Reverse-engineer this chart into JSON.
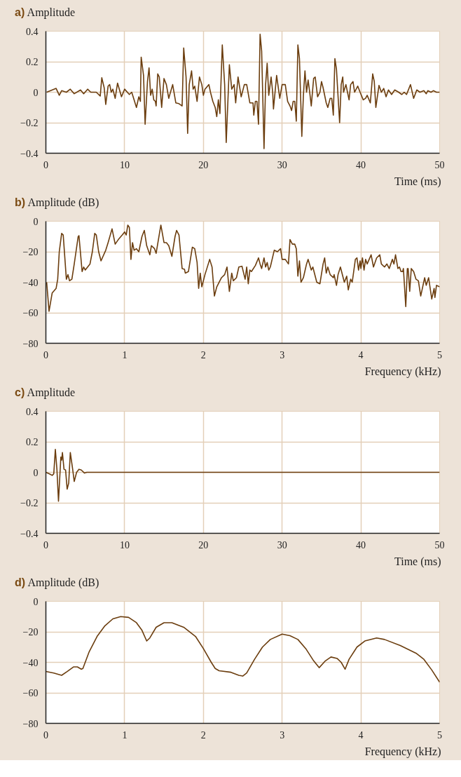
{
  "chart_data": [
    {
      "type": "line",
      "title": "a)",
      "ylabel": "Amplitude",
      "xlabel": "Time (ms)",
      "xlim": [
        0,
        50
      ],
      "ylim": [
        -0.4,
        0.4
      ],
      "grid": true,
      "xticks": [
        0,
        10,
        20,
        30,
        40,
        50
      ],
      "yticks": [
        {
          "value": -0.4,
          "label": "−0.4"
        },
        {
          "value": -0.2,
          "label": "−0.2"
        },
        0,
        0.2,
        0.4
      ],
      "series": [
        {
          "color": "#6b3d0e",
          "x": [
            0.1,
            1.3,
            1.7,
            2.0,
            2.6,
            3.1,
            3.6,
            4.4,
            4.8,
            5.3,
            5.7,
            6.4,
            6.9,
            7.1,
            7.4,
            7.6,
            7.9,
            8.1,
            8.3,
            8.5,
            8.8,
            9.1,
            9.6,
            10.0,
            10.6,
            10.9,
            11.5,
            11.8,
            12.0,
            12.1,
            12.4,
            12.6,
            12.9,
            13.1,
            13.3,
            13.5,
            13.7,
            13.9,
            14.0,
            14.2,
            14.4,
            14.7,
            15.0,
            15.3,
            15.6,
            16.1,
            16.5,
            16.9,
            17.3,
            17.5,
            17.8,
            18.0,
            18.2,
            18.5,
            18.7,
            18.9,
            19.2,
            19.5,
            19.8,
            20.0,
            20.2,
            20.7,
            20.9,
            21.2,
            21.5,
            21.7,
            21.9,
            22.1,
            22.4,
            22.7,
            22.9,
            23.3,
            23.6,
            23.8,
            23.9,
            24.1,
            24.4,
            24.8,
            25.2,
            25.5,
            25.9,
            26.3,
            26.4,
            26.6,
            26.8,
            27.0,
            27.2,
            27.4,
            27.7,
            27.9,
            28.1,
            28.3,
            28.6,
            28.8,
            28.9,
            29.3,
            29.7,
            30.0,
            30.2,
            30.4,
            30.7,
            31.0,
            31.2,
            31.4,
            31.6,
            31.8,
            32.0,
            32.2,
            32.5,
            32.7,
            32.9,
            33.1,
            33.3,
            33.5,
            33.7,
            34.0,
            34.2,
            34.5,
            34.8,
            35.0,
            35.2,
            35.6,
            35.8,
            36.1,
            36.3,
            36.5,
            36.7,
            36.9,
            37.3,
            37.5,
            37.7,
            37.8,
            38.1,
            38.3,
            38.5,
            38.7,
            39.0,
            39.2,
            39.6,
            39.9,
            40.3,
            40.6,
            40.8,
            41.2,
            41.5,
            41.7,
            41.9,
            42.3,
            42.6,
            42.9,
            43.2,
            43.5,
            43.9,
            44.3,
            44.8,
            45.2,
            45.5,
            45.8,
            46.3,
            46.7,
            47.1,
            47.5,
            48.0,
            48.3,
            48.5,
            48.9,
            49.2,
            49.6,
            50.0
          ],
          "values": [
            0,
            0.025,
            -0.02,
            0.01,
            0.0,
            0.02,
            -0.01,
            0.015,
            -0.01,
            0.02,
            0,
            0,
            -0.025,
            0.095,
            0.03,
            -0.08,
            0.04,
            0.05,
            0,
            0.02,
            -0.04,
            0.06,
            -0.03,
            0.02,
            -0.015,
            0,
            -0.1,
            -0.03,
            -0.06,
            0.23,
            0.11,
            -0.21,
            0.07,
            0.16,
            -0.02,
            0.02,
            -0.05,
            -0.06,
            -0.09,
            0.12,
            0.1,
            -0.1,
            0.09,
            0.05,
            -0.04,
            0.05,
            -0.07,
            -0.075,
            -0.09,
            0.29,
            0.1,
            -0.27,
            0.05,
            0.14,
            0.02,
            0.04,
            -0.06,
            0.1,
            0.05,
            -0.02,
            0.02,
            0.05,
            0,
            -0.06,
            -0.1,
            -0.16,
            -0.05,
            -0.14,
            0.31,
            0.05,
            -0.33,
            0.18,
            0.02,
            0.04,
            0.05,
            -0.07,
            0.1,
            -0.03,
            0.05,
            0.05,
            -0.07,
            -0.07,
            -0.15,
            -0.06,
            -0.06,
            -0.21,
            0.38,
            0.27,
            -0.37,
            0.05,
            0.19,
            -0.02,
            0.1,
            0,
            -0.11,
            0.11,
            -0.04,
            0.05,
            0.05,
            0.05,
            -0.06,
            -0.09,
            -0.12,
            -0.06,
            -0.06,
            -0.19,
            0.31,
            0.22,
            -0.29,
            -0.02,
            0.14,
            0,
            0.08,
            0,
            -0.09,
            0.09,
            0.1,
            -0.03,
            0,
            0.07,
            0.03,
            -0.07,
            -0.1,
            -0.04,
            -0.04,
            -0.15,
            0.22,
            0.15,
            -0.2,
            0.05,
            0.1,
            0,
            0.05,
            0,
            -0.05,
            0.05,
            0.07,
            0,
            0.04,
            0.0,
            -0.05,
            -0.04,
            -0.02,
            -0.07,
            0.12,
            0.07,
            -0.1,
            0.045,
            0,
            0.025,
            -0.03,
            0.015,
            -0.015,
            0.015,
            0,
            -0.015,
            0,
            -0.015,
            0.05,
            -0.04,
            0.015,
            0,
            0.01,
            -0.01,
            0.01,
            0,
            0.01,
            0,
            0
          ]
        }
      ]
    },
    {
      "type": "line",
      "title": "b)",
      "ylabel": "Amplitude (dB)",
      "xlabel": "Frequency (kHz)",
      "xlim": [
        0,
        5
      ],
      "ylim": [
        -80,
        0
      ],
      "grid": true,
      "xticks": [
        0,
        1,
        2,
        3,
        4,
        5
      ],
      "yticks": [
        {
          "value": -80,
          "label": "−80"
        },
        {
          "value": -60,
          "label": "−60"
        },
        {
          "value": -40,
          "label": "−40"
        },
        {
          "value": -20,
          "label": "−20"
        },
        0
      ],
      "series": [
        {
          "color": "#6b3d0e",
          "x": [
            0.01,
            0.04,
            0.08,
            0.13,
            0.15,
            0.17,
            0.2,
            0.22,
            0.26,
            0.28,
            0.3,
            0.33,
            0.36,
            0.41,
            0.42,
            0.46,
            0.48,
            0.5,
            0.56,
            0.59,
            0.62,
            0.64,
            0.67,
            0.7,
            0.76,
            0.79,
            0.84,
            0.88,
            0.92,
            0.97,
            1.0,
            1.02,
            1.04,
            1.06,
            1.08,
            1.1,
            1.12,
            1.15,
            1.18,
            1.22,
            1.25,
            1.28,
            1.32,
            1.34,
            1.38,
            1.4,
            1.46,
            1.5,
            1.53,
            1.56,
            1.6,
            1.64,
            1.66,
            1.69,
            1.73,
            1.76,
            1.77,
            1.81,
            1.86,
            1.89,
            1.92,
            1.94,
            1.96,
            1.98,
            2.02,
            2.08,
            2.11,
            2.14,
            2.17,
            2.23,
            2.27,
            2.3,
            2.33,
            2.36,
            2.38,
            2.42,
            2.45,
            2.49,
            2.53,
            2.55,
            2.57,
            2.59,
            2.61,
            2.66,
            2.7,
            2.72,
            2.74,
            2.77,
            2.79,
            2.81,
            2.83,
            2.85,
            2.9,
            2.94,
            2.98,
            3.0,
            3.04,
            3.08,
            3.1,
            3.13,
            3.16,
            3.18,
            3.2,
            3.22,
            3.24,
            3.27,
            3.31,
            3.33,
            3.37,
            3.39,
            3.44,
            3.48,
            3.52,
            3.54,
            3.56,
            3.58,
            3.61,
            3.65,
            3.66,
            3.69,
            3.71,
            3.74,
            3.79,
            3.82,
            3.84,
            3.87,
            3.89,
            3.93,
            3.95,
            3.97,
            3.99,
            4.0,
            4.02,
            4.04,
            4.06,
            4.08,
            4.13,
            4.16,
            4.2,
            4.24,
            4.26,
            4.3,
            4.33,
            4.36,
            4.4,
            4.42,
            4.44,
            4.47,
            4.49,
            4.51,
            4.53,
            4.54,
            4.57,
            4.59,
            4.6,
            4.62,
            4.64,
            4.67,
            4.7,
            4.73,
            4.76,
            4.81,
            4.83,
            4.86,
            4.9,
            4.93,
            4.94,
            4.96,
            5.0
          ],
          "values": [
            -40,
            -59,
            -47,
            -44,
            -38,
            -20,
            -8,
            -9,
            -38,
            -35,
            -39,
            -38,
            -28,
            -10,
            -9.5,
            -33,
            -30,
            -32,
            -28,
            -20,
            -8,
            -9,
            -20,
            -26,
            -19,
            -14,
            -5,
            -15,
            -12,
            -9,
            -7,
            -9,
            -2.5,
            -4,
            -25,
            -14,
            -19,
            -18,
            -20,
            -10,
            -6,
            -16,
            -22,
            -16,
            -18,
            -21,
            -2.5,
            -14,
            -14,
            -16,
            -23,
            -10,
            -6,
            -9,
            -31,
            -31.5,
            -34,
            -33,
            -17,
            -18,
            -27,
            -44,
            -34,
            -43,
            -35,
            -25,
            -30,
            -49,
            -43,
            -37,
            -35,
            -30,
            -46,
            -34,
            -39,
            -37,
            -30,
            -29.5,
            -38,
            -30,
            -41,
            -32,
            -33,
            -29,
            -24,
            -28,
            -31,
            -24,
            -30,
            -27,
            -32,
            -30,
            -19,
            -20,
            -18,
            -25,
            -25,
            -28,
            -12,
            -15,
            -15,
            -18,
            -36,
            -26,
            -40,
            -37,
            -28,
            -25,
            -32,
            -30,
            -40,
            -41,
            -28,
            -24,
            -34,
            -30,
            -35,
            -37,
            -35,
            -42,
            -35,
            -30,
            -40,
            -36,
            -45,
            -38,
            -40,
            -25,
            -24,
            -32,
            -26,
            -31,
            -24,
            -32,
            -25,
            -28,
            -22,
            -30,
            -24,
            -22,
            -28,
            -30,
            -28,
            -31,
            -25,
            -28,
            -22,
            -31,
            -30,
            -33,
            -33,
            -31,
            -56,
            -31,
            -31,
            -46,
            -31,
            -33,
            -38,
            -39,
            -49,
            -37,
            -42,
            -37,
            -51,
            -44,
            -50,
            -42,
            -43
          ]
        }
      ]
    },
    {
      "type": "line",
      "title": "c)",
      "ylabel": "Amplitude",
      "xlabel": "Time (ms)",
      "xlim": [
        0,
        50
      ],
      "ylim": [
        -0.4,
        0.4
      ],
      "grid": true,
      "xticks": [
        0,
        10,
        20,
        30,
        40,
        50
      ],
      "yticks": [
        {
          "value": -0.4,
          "label": "−0.4"
        },
        {
          "value": -0.2,
          "label": "−0.2"
        },
        0,
        0.2,
        0.4
      ],
      "series": [
        {
          "color": "#6b3d0e",
          "x": [
            0,
            0.45,
            0.8,
            1.0,
            1.2,
            1.4,
            1.6,
            1.9,
            2.0,
            2.1,
            2.3,
            2.5,
            2.7,
            2.9,
            3.1,
            3.4,
            3.6,
            3.9,
            4.2,
            4.5,
            4.9,
            5.2,
            50
          ],
          "values": [
            0,
            -0.01,
            -0.02,
            -0.01,
            0.15,
            0.02,
            -0.19,
            0.1,
            0.08,
            0.13,
            0.02,
            0.015,
            -0.11,
            -0.07,
            0.13,
            0.02,
            -0.06,
            0.0,
            0.02,
            0.015,
            -0.005,
            0,
            0
          ]
        }
      ]
    },
    {
      "type": "line",
      "title": "d)",
      "ylabel": "Amplitude (dB)",
      "xlabel": "Frequency (kHz)",
      "xlim": [
        0,
        5
      ],
      "ylim": [
        -80,
        0
      ],
      "grid": true,
      "xticks": [
        0,
        1,
        2,
        3,
        4,
        5
      ],
      "yticks": [
        {
          "value": -80,
          "label": "−80"
        },
        {
          "value": -60,
          "label": "−60"
        },
        {
          "value": -40,
          "label": "−40"
        },
        {
          "value": -20,
          "label": "−20"
        },
        0
      ],
      "series": [
        {
          "color": "#6b3d0e",
          "x": [
            0,
            0.1,
            0.2,
            0.27,
            0.35,
            0.4,
            0.45,
            0.47,
            0.55,
            0.65,
            0.75,
            0.85,
            0.95,
            1.05,
            1.15,
            1.22,
            1.28,
            1.32,
            1.4,
            1.5,
            1.6,
            1.75,
            1.9,
            2.0,
            2.1,
            2.15,
            2.2,
            2.35,
            2.45,
            2.5,
            2.55,
            2.65,
            2.75,
            2.85,
            3.0,
            3.1,
            3.2,
            3.3,
            3.4,
            3.47,
            3.55,
            3.62,
            3.7,
            3.75,
            3.8,
            3.85,
            3.95,
            4.05,
            4.2,
            4.3,
            4.5,
            4.7,
            4.8,
            4.9,
            5.0
          ],
          "values": [
            -46,
            -47,
            -48.5,
            -46,
            -43,
            -43,
            -44.5,
            -44,
            -33,
            -23,
            -16,
            -11.5,
            -10,
            -10.5,
            -14,
            -19,
            -26,
            -24,
            -17,
            -14,
            -14,
            -17,
            -23,
            -31,
            -40,
            -44,
            -45.5,
            -46.5,
            -48.5,
            -49,
            -47,
            -38,
            -30,
            -25,
            -21.5,
            -22.5,
            -25,
            -31,
            -39,
            -43.5,
            -39,
            -36.5,
            -37.5,
            -40,
            -44.5,
            -38,
            -30,
            -26,
            -24,
            -25,
            -29,
            -34,
            -38,
            -45,
            -53
          ]
        }
      ]
    }
  ]
}
